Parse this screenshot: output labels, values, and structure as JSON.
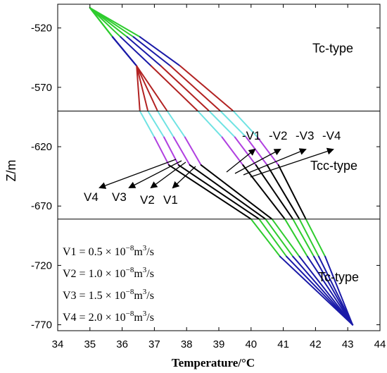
{
  "chart_data": {
    "type": "line",
    "xlabel": "Temperature/°C",
    "ylabel": "Z/m",
    "xlim": [
      34,
      44
    ],
    "ylim": [
      -775,
      -500
    ],
    "xticks": [
      "34",
      "35",
      "36",
      "37",
      "38",
      "39",
      "40",
      "41",
      "42",
      "43",
      "44"
    ],
    "yticks": [
      {
        "value": -520,
        "label": "-520"
      },
      {
        "value": -570,
        "label": "-570"
      },
      {
        "value": -620,
        "label": "-620"
      },
      {
        "value": -670,
        "label": "-670"
      },
      {
        "value": -720,
        "label": "-720"
      },
      {
        "value": -770,
        "label": "-770"
      }
    ],
    "grid": false,
    "boundaries": [
      -590,
      -681
    ],
    "zones": [
      {
        "label": "Tc-type",
        "z": -537
      },
      {
        "label": "Tcc-type",
        "z": -636
      },
      {
        "label": "Tc-type",
        "z": -730
      }
    ],
    "segment_colors": [
      "#2ecc2e",
      "#1a1aa8",
      "#b22222",
      "#6fe3e3",
      "#b040e0",
      "#000000",
      "#2ecc2e",
      "#1a1aa8",
      "#b22222"
    ],
    "series_x_at_z": [
      -503,
      -527.5,
      -552,
      -590,
      -612,
      -635.5,
      -681,
      -712.5,
      -770
    ],
    "series": [
      {
        "name": "-V4",
        "x": [
          35.0,
          36.55,
          37.8,
          39.45,
          40.2,
          40.85,
          41.7,
          42.3,
          43.15
        ]
      },
      {
        "name": "-V3",
        "x": [
          35.0,
          36.35,
          37.5,
          39.05,
          39.85,
          40.5,
          41.5,
          42.1,
          43.15
        ]
      },
      {
        "name": "-V2",
        "x": [
          35.0,
          36.15,
          37.2,
          38.7,
          39.5,
          40.15,
          41.3,
          41.95,
          43.15
        ]
      },
      {
        "name": "-V1",
        "x": [
          35.0,
          35.95,
          36.9,
          38.35,
          39.1,
          39.75,
          41.05,
          41.75,
          43.15
        ]
      },
      {
        "name": "V1",
        "x": [
          35.0,
          35.7,
          36.45,
          37.4,
          37.95,
          38.45,
          40.65,
          41.5,
          43.15
        ]
      },
      {
        "name": "V2",
        "x": [
          35.0,
          35.7,
          36.45,
          37.1,
          37.6,
          38.1,
          40.45,
          41.3,
          43.15
        ]
      },
      {
        "name": "V3",
        "x": [
          35.0,
          35.7,
          36.45,
          36.8,
          37.3,
          37.75,
          40.25,
          41.1,
          43.15
        ]
      },
      {
        "name": "V4",
        "x": [
          35.0,
          35.7,
          36.45,
          36.55,
          37.0,
          37.45,
          40.0,
          40.9,
          43.15
        ]
      }
    ],
    "arrow_labels": {
      "left": [
        "V4",
        "V3",
        "V2",
        "V1"
      ],
      "right": [
        "-V1",
        "-V2",
        "-V3",
        "-V4"
      ]
    },
    "legend_formulas": [
      {
        "lhs": "V1",
        "coef": "0.5",
        "unit": "m",
        "exp": "3",
        "suffix": "/s"
      },
      {
        "lhs": "V2",
        "coef": "1.0",
        "unit": "m",
        "exp": "3",
        "suffix": "/s"
      },
      {
        "lhs": "V3",
        "coef": "1.5",
        "unit": "m",
        "exp": "3",
        "suffix": "/s"
      },
      {
        "lhs": "V4",
        "coef": "2.0",
        "unit": "m",
        "exp": "3",
        "suffix": "/s"
      }
    ],
    "formula_multiplier": "× 10",
    "formula_power": "−8"
  }
}
